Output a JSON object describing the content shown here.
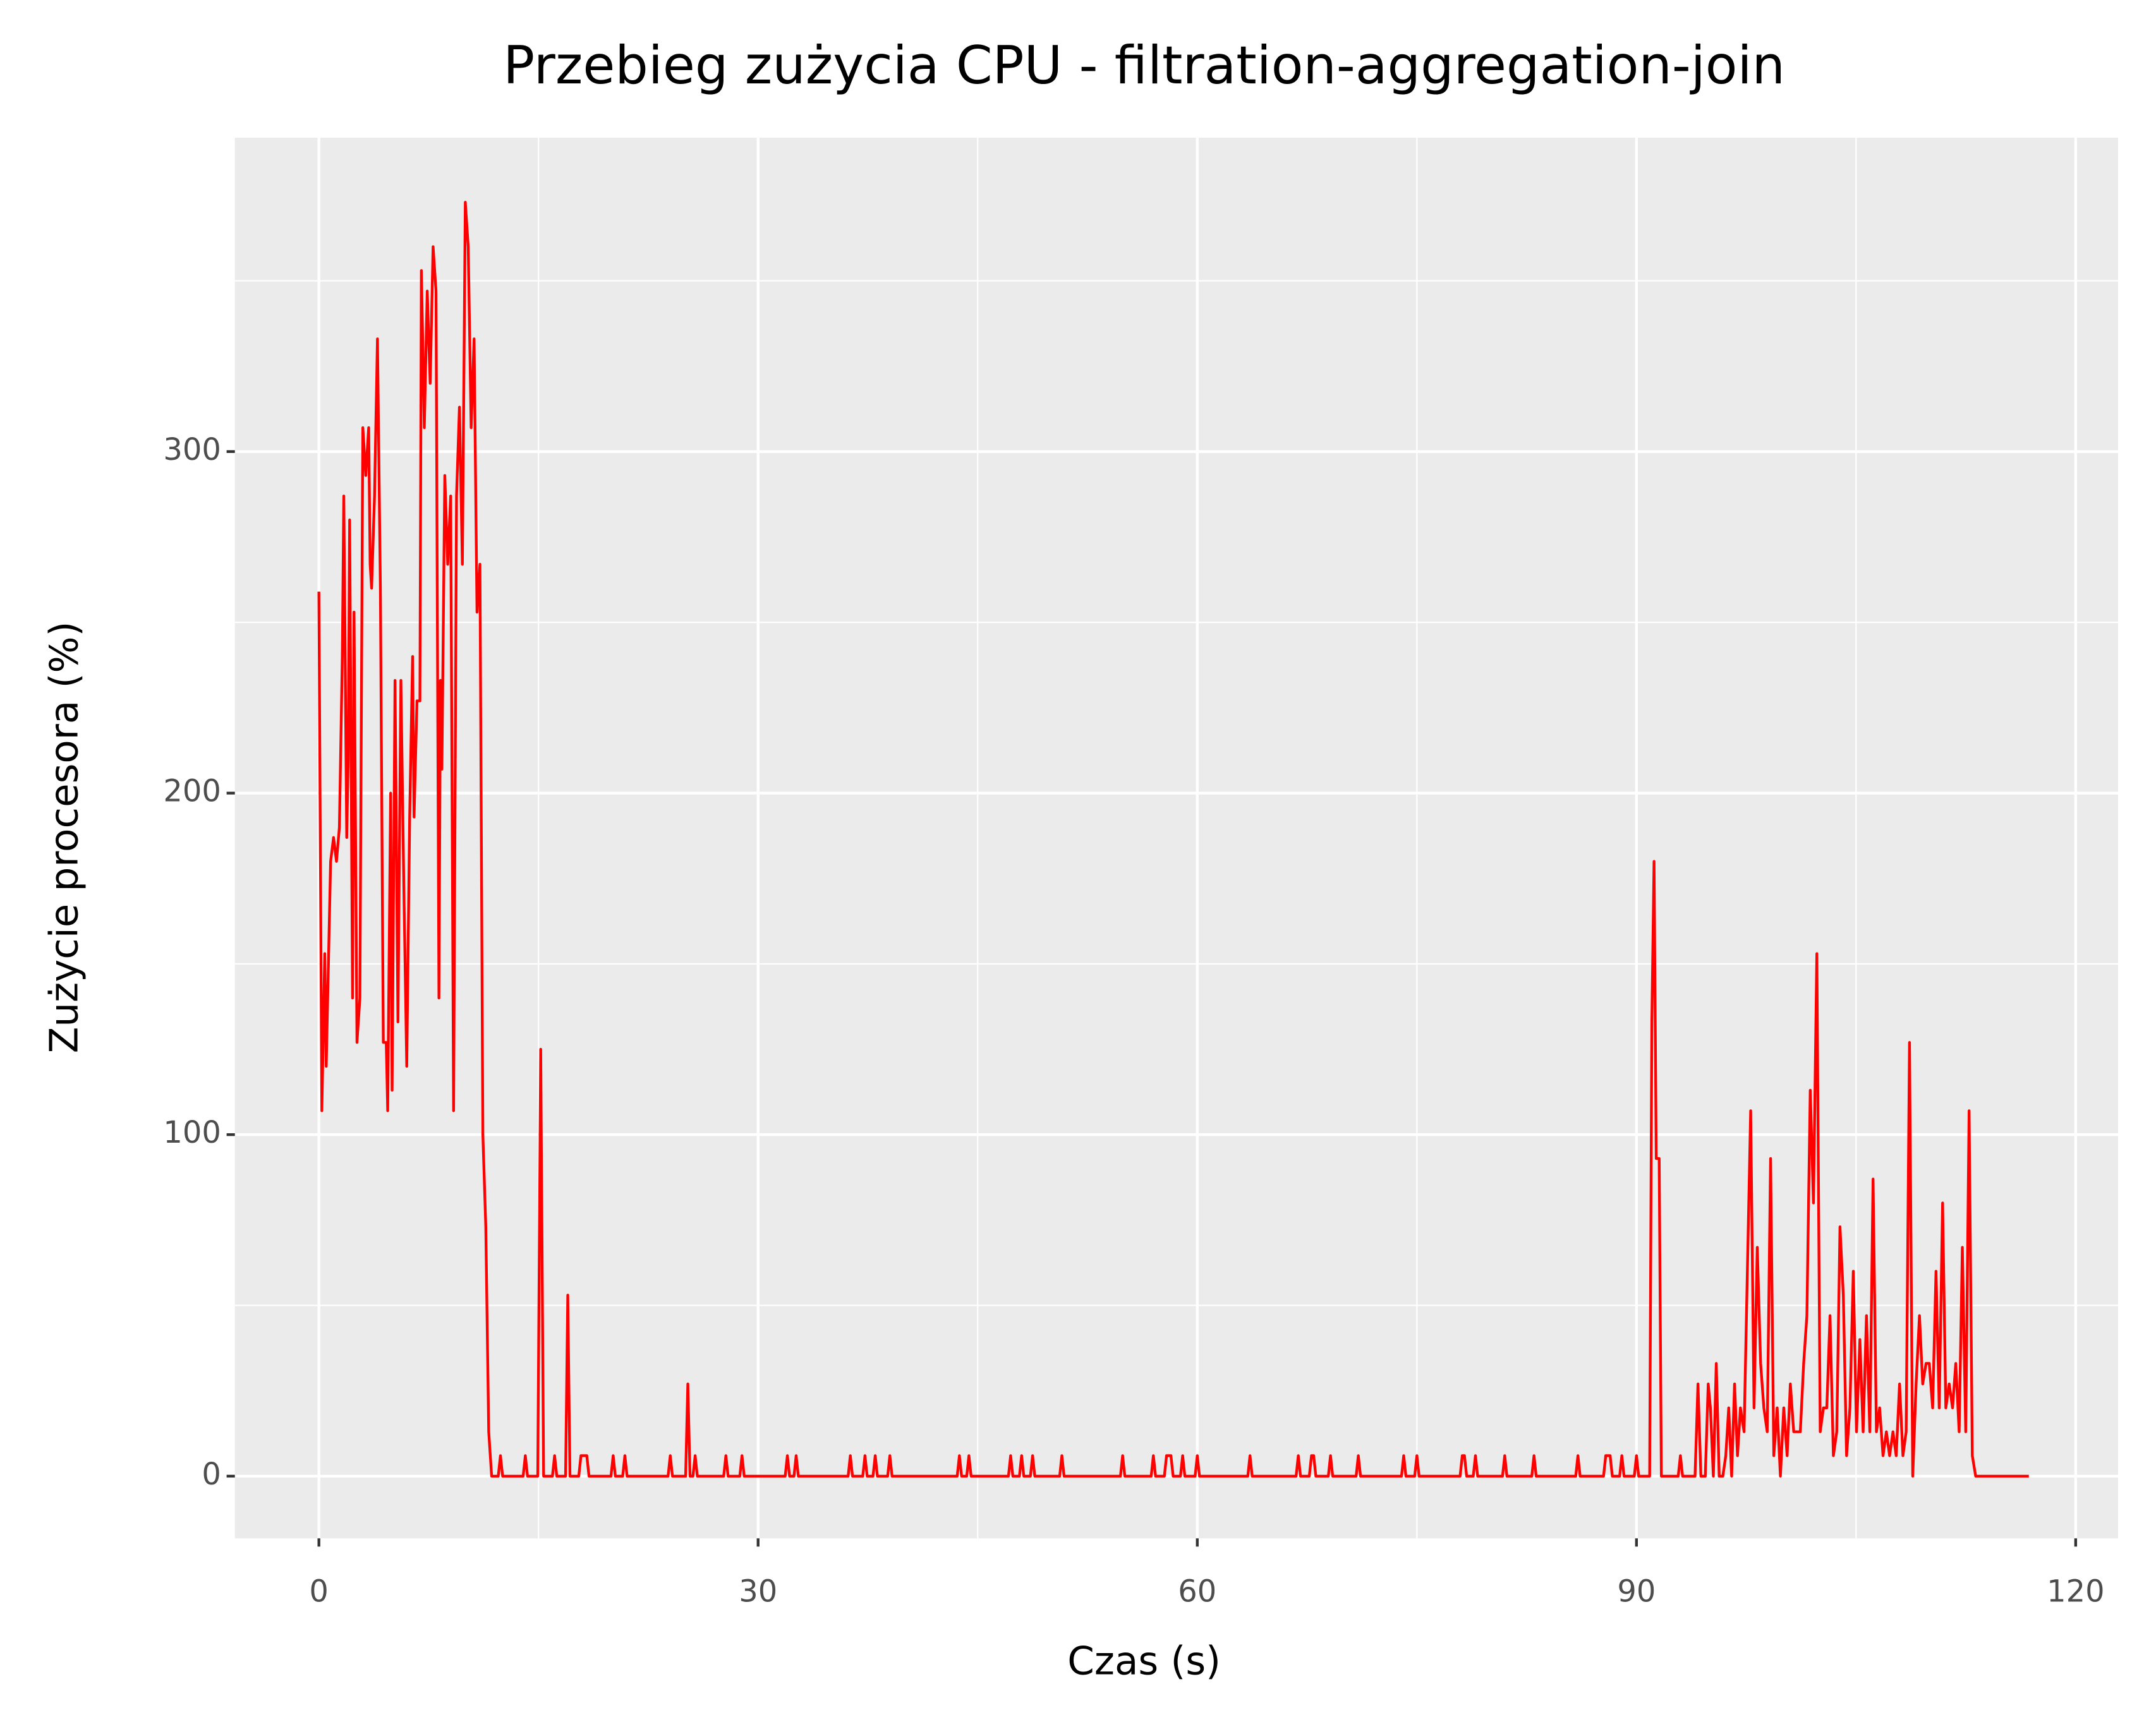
{
  "chart_data": {
    "type": "line",
    "title": "Przebieg zużycia CPU - filtration-aggregation-join",
    "x_label": "Czas (s)",
    "y_label": "Zużycie procesora (%)",
    "xlim": [
      -5.74,
      122.9
    ],
    "ylim": [
      -18.2,
      391.9
    ],
    "xticks": [
      0,
      30,
      60,
      90,
      120
    ],
    "yticks": [
      0,
      100,
      200,
      300
    ],
    "x_minor_grid": [
      15,
      45,
      75,
      105
    ],
    "y_minor_grid": [
      50,
      150,
      250,
      350
    ],
    "grid": true,
    "color": "#ff0000",
    "x": [
      0,
      0.2,
      0.4,
      0.5,
      0.8,
      1.0,
      1.2,
      1.4,
      1.6,
      1.7,
      1.9,
      2.0,
      2.1,
      2.3,
      2.4,
      2.6,
      2.8,
      3.0,
      3.2,
      3.4,
      3.5,
      3.6,
      3.8,
      4.0,
      4.2,
      4.4,
      4.6,
      4.7,
      4.9,
      5.0,
      5.2,
      5.4,
      5.6,
      5.8,
      6.0,
      6.2,
      6.4,
      6.5,
      6.7,
      6.9,
      7.0,
      7.2,
      7.4,
      7.6,
      7.8,
      8.0,
      8.2,
      8.3,
      8.4,
      8.6,
      8.8,
      9.0,
      9.2,
      9.4,
      9.6,
      9.8,
      10.0,
      10.2,
      10.4,
      10.6,
      10.8,
      11.0,
      11.2,
      11.4,
      11.6,
      11.8,
      12.25,
      12.4,
      12.55,
      13.95,
      14.1,
      14.25,
      14.95,
      15.15,
      15.35,
      15.95,
      16.1,
      16.25,
      16.85,
      17.0,
      17.15,
      17.75,
      17.9,
      18.05,
      18.3,
      18.45,
      19.95,
      20.1,
      20.25,
      20.75,
      20.9,
      21.05,
      23.85,
      24.0,
      24.15,
      25.05,
      25.2,
      25.35,
      25.55,
      25.7,
      25.85,
      27.65,
      27.8,
      27.95,
      28.75,
      28.9,
      29.05,
      31.85,
      32.0,
      32.15,
      32.45,
      32.6,
      32.75,
      36.15,
      36.3,
      36.45,
      37.15,
      37.3,
      37.45,
      37.85,
      38.0,
      38.15,
      38.85,
      39.0,
      39.15,
      43.6,
      43.75,
      43.9,
      44.25,
      44.4,
      44.55,
      47.1,
      47.25,
      47.4,
      47.85,
      48.0,
      48.15,
      48.6,
      48.75,
      48.9,
      50.6,
      50.75,
      50.9,
      54.75,
      54.9,
      55.05,
      56.85,
      57.0,
      57.15,
      57.75,
      57.9,
      58.05,
      58.2,
      58.35,
      58.85,
      59.0,
      59.15,
      59.85,
      60.0,
      60.15,
      63.45,
      63.6,
      63.75,
      66.75,
      66.9,
      67.05,
      67.65,
      67.8,
      67.95,
      68.1,
      68.95,
      69.1,
      69.25,
      70.85,
      71.0,
      71.15,
      73.95,
      74.1,
      74.25,
      74.85,
      75.0,
      75.15,
      77.95,
      78.1,
      78.25,
      78.4,
      78.85,
      79.0,
      79.15,
      80.85,
      81.0,
      81.15,
      82.85,
      83.0,
      83.15,
      85.85,
      86.0,
      86.15,
      87.75,
      87.9,
      88.05,
      88.2,
      88.35,
      88.85,
      89.0,
      89.15,
      89.85,
      90.0,
      90.15,
      90.9,
      91.05,
      91.2,
      91.35,
      91.55,
      91.7,
      92.85,
      93.0,
      93.15,
      94.0,
      94.2,
      94.4,
      94.7,
      94.9,
      95.05,
      95.25,
      95.45,
      95.65,
      95.9,
      96.1,
      96.3,
      96.5,
      96.7,
      96.9,
      97.1,
      97.35,
      97.8,
      98.03,
      98.25,
      98.48,
      98.7,
      98.93,
      99.16,
      99.38,
      99.61,
      99.83,
      100.06,
      100.29,
      100.51,
      100.74,
      100.96,
      101.19,
      101.42,
      101.64,
      101.87,
      102.09,
      102.32,
      102.55,
      102.77,
      103.0,
      103.22,
      103.45,
      103.68,
      103.9,
      104.13,
      104.35,
      104.58,
      104.81,
      105.03,
      105.26,
      105.48,
      105.71,
      105.94,
      106.16,
      106.39,
      106.61,
      106.84,
      107.07,
      107.29,
      107.52,
      107.74,
      107.97,
      108.2,
      108.42,
      108.65,
      108.87,
      109.1,
      109.33,
      109.55,
      109.78,
      110.0,
      110.23,
      110.46,
      110.68,
      110.91,
      111.13,
      111.36,
      111.59,
      111.81,
      112.04,
      112.26,
      112.49,
      112.72,
      112.94,
      113.17,
      116.8
    ],
    "values": [
      259,
      107,
      153,
      120,
      180,
      187,
      180,
      190,
      240,
      287,
      187,
      210,
      280,
      140,
      253,
      127,
      140,
      307,
      293,
      307,
      267,
      260,
      287,
      333,
      260,
      127,
      127,
      107,
      200,
      113,
      233,
      133,
      233,
      173,
      120,
      193,
      240,
      193,
      227,
      227,
      353,
      307,
      347,
      320,
      360,
      347,
      140,
      233,
      207,
      293,
      267,
      287,
      107,
      287,
      313,
      267,
      373,
      360,
      307,
      333,
      253,
      267,
      100,
      73,
      13,
      0,
      0,
      6,
      0,
      0,
      6,
      0,
      0,
      125,
      0,
      0,
      6,
      0,
      0,
      53,
      0,
      0,
      6,
      6,
      6,
      0,
      0,
      6,
      0,
      0,
      6,
      0,
      0,
      6,
      0,
      0,
      27,
      0,
      0,
      6,
      0,
      0,
      6,
      0,
      0,
      6,
      0,
      0,
      6,
      0,
      0,
      6,
      0,
      0,
      6,
      0,
      0,
      6,
      0,
      0,
      6,
      0,
      0,
      6,
      0,
      0,
      6,
      0,
      0,
      6,
      0,
      0,
      6,
      0,
      0,
      6,
      0,
      0,
      6,
      0,
      0,
      6,
      0,
      0,
      6,
      0,
      0,
      6,
      0,
      0,
      6,
      6,
      6,
      0,
      0,
      6,
      0,
      0,
      6,
      0,
      0,
      6,
      0,
      0,
      6,
      0,
      0,
      6,
      6,
      0,
      0,
      6,
      0,
      0,
      6,
      0,
      0,
      6,
      0,
      0,
      6,
      0,
      0,
      6,
      6,
      0,
      0,
      6,
      0,
      0,
      6,
      0,
      0,
      6,
      0,
      0,
      6,
      0,
      0,
      6,
      6,
      6,
      0,
      0,
      6,
      0,
      0,
      6,
      0,
      0,
      133,
      180,
      93,
      93,
      0,
      0,
      6,
      0,
      0,
      27,
      0,
      0,
      27,
      20,
      0,
      33,
      0,
      0,
      6,
      20,
      0,
      27,
      6,
      20,
      13,
      107,
      20,
      67,
      33,
      20,
      13,
      93,
      6,
      20,
      0,
      20,
      6,
      27,
      13,
      13,
      13,
      33,
      47,
      113,
      80,
      153,
      13,
      20,
      20,
      47,
      6,
      13,
      73,
      53,
      6,
      20,
      60,
      13,
      40,
      13,
      47,
      13,
      87,
      13,
      20,
      6,
      13,
      6,
      13,
      6,
      27,
      6,
      13,
      127,
      0,
      27,
      47,
      27,
      33,
      33,
      20,
      60,
      20,
      80,
      20,
      27,
      20,
      33,
      13,
      67,
      13,
      107,
      6,
      0,
      0
    ]
  }
}
